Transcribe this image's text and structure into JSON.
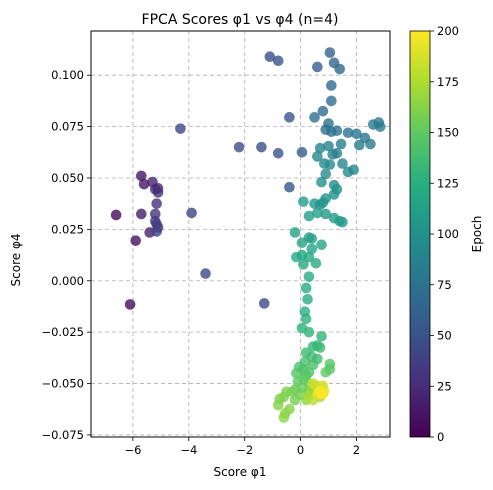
{
  "chart_data": {
    "type": "scatter",
    "title": "FPCA Scores φ1 vs φ4 (n=4)",
    "xlabel": "Score φ1",
    "ylabel": "Score φ4",
    "xlim": [
      -7.5,
      3.2
    ],
    "ylim": [
      -0.076,
      0.1215
    ],
    "xticks": [
      -6,
      -4,
      -2,
      0,
      2
    ],
    "xtick_labels": [
      "−6",
      "−4",
      "−2",
      "0",
      "2"
    ],
    "yticks": [
      -0.075,
      -0.05,
      -0.025,
      0.0,
      0.025,
      0.05,
      0.075,
      0.1
    ],
    "ytick_labels": [
      "−0.075",
      "−0.050",
      "−0.025",
      "0.000",
      "0.025",
      "0.050",
      "0.075",
      "0.100"
    ],
    "grid": true,
    "colormap": "viridis",
    "marker_alpha": 0.8,
    "colorbar": {
      "label": "Epoch",
      "range": [
        0,
        200
      ],
      "ticks": [
        0,
        25,
        50,
        75,
        100,
        125,
        150,
        175,
        200
      ],
      "tick_labels": [
        "0",
        "25",
        "50",
        "75",
        "100",
        "125",
        "150",
        "175",
        "200"
      ]
    },
    "points": [
      [
        -6.6,
        0.032,
        5
      ],
      [
        -6.1,
        -0.0115,
        8
      ],
      [
        -5.9,
        0.0195,
        10
      ],
      [
        -5.7,
        0.051,
        12
      ],
      [
        -5.6,
        0.047,
        14
      ],
      [
        -5.7,
        0.0325,
        16
      ],
      [
        -5.4,
        0.0235,
        18
      ],
      [
        -5.3,
        0.048,
        20
      ],
      [
        -5.2,
        0.0445,
        22
      ],
      [
        -5.1,
        0.045,
        24
      ],
      [
        -5.1,
        0.043,
        26
      ],
      [
        -5.15,
        0.0375,
        28
      ],
      [
        -5.2,
        0.0325,
        30
      ],
      [
        -5.2,
        0.029,
        32
      ],
      [
        -5.15,
        0.0275,
        34
      ],
      [
        -5.1,
        0.026,
        36
      ],
      [
        -5.15,
        0.024,
        38
      ],
      [
        -3.9,
        0.033,
        40
      ],
      [
        -4.3,
        0.074,
        42
      ],
      [
        -3.4,
        0.0035,
        44
      ],
      [
        -1.3,
        -0.011,
        45
      ],
      [
        -2.2,
        0.065,
        46
      ],
      [
        -1.4,
        0.065,
        48
      ],
      [
        -1.1,
        0.109,
        49
      ],
      [
        -0.8,
        0.107,
        50
      ],
      [
        -0.8,
        0.062,
        52
      ],
      [
        -0.4,
        0.0795,
        54
      ],
      [
        -0.4,
        0.0455,
        56
      ],
      [
        0.05,
        0.0625,
        58
      ],
      [
        0.6,
        0.104,
        60
      ],
      [
        1.05,
        0.111,
        62
      ],
      [
        1.2,
        0.106,
        64
      ],
      [
        1.4,
        0.103,
        66
      ],
      [
        1.1,
        0.095,
        68
      ],
      [
        1.1,
        0.0875,
        70
      ],
      [
        0.8,
        0.0825,
        71
      ],
      [
        0.5,
        0.0795,
        72
      ],
      [
        1.0,
        0.0765,
        73
      ],
      [
        0.9,
        0.0735,
        74
      ],
      [
        1.1,
        0.0725,
        75
      ],
      [
        1.3,
        0.073,
        76
      ],
      [
        1.7,
        0.072,
        77
      ],
      [
        2.0,
        0.0715,
        78
      ],
      [
        2.3,
        0.0695,
        79
      ],
      [
        2.6,
        0.076,
        80
      ],
      [
        2.8,
        0.077,
        81
      ],
      [
        2.85,
        0.075,
        82
      ],
      [
        2.5,
        0.0665,
        83
      ],
      [
        2.1,
        0.066,
        84
      ],
      [
        1.45,
        0.0665,
        85
      ],
      [
        1.3,
        0.062,
        86
      ],
      [
        1.15,
        0.0615,
        87
      ],
      [
        1.0,
        0.0655,
        88
      ],
      [
        0.7,
        0.0645,
        89
      ],
      [
        0.6,
        0.0605,
        90
      ],
      [
        1.5,
        0.057,
        91
      ],
      [
        1.7,
        0.053,
        92
      ],
      [
        1.9,
        0.054,
        93
      ],
      [
        1.05,
        0.0565,
        94
      ],
      [
        0.85,
        0.057,
        95
      ],
      [
        0.9,
        0.052,
        96
      ],
      [
        0.75,
        0.048,
        97
      ],
      [
        1.2,
        0.0465,
        98
      ],
      [
        1.3,
        0.0445,
        99
      ],
      [
        1.2,
        0.042,
        100
      ],
      [
        0.9,
        0.04,
        101
      ],
      [
        0.8,
        0.038,
        102
      ],
      [
        0.7,
        0.037,
        103
      ],
      [
        0.5,
        0.0375,
        104
      ],
      [
        0.9,
        0.0325,
        105
      ],
      [
        1.4,
        0.029,
        106
      ],
      [
        1.5,
        0.0285,
        107
      ],
      [
        1.2,
        0.0305,
        108
      ],
      [
        0.1,
        0.0385,
        109
      ],
      [
        0.6,
        0.033,
        110
      ],
      [
        0.3,
        0.0315,
        111
      ],
      [
        0.3,
        0.021,
        112
      ],
      [
        0.4,
        0.0205,
        113
      ],
      [
        -0.2,
        0.0235,
        114
      ],
      [
        0.05,
        0.0185,
        115
      ],
      [
        0.4,
        0.0155,
        116
      ],
      [
        0.75,
        0.0175,
        117
      ],
      [
        0.05,
        0.0125,
        118
      ],
      [
        -0.15,
        0.0115,
        119
      ],
      [
        0.3,
        0.0115,
        120
      ],
      [
        0.1,
        0.008,
        121
      ],
      [
        0.55,
        0.0085,
        122
      ],
      [
        0.3,
        0.002,
        123
      ],
      [
        0.2,
        -0.0035,
        124
      ],
      [
        0.25,
        -0.009,
        125
      ],
      [
        0.15,
        -0.015,
        126
      ],
      [
        0.2,
        -0.0185,
        127
      ],
      [
        0.05,
        -0.023,
        128
      ],
      [
        0.3,
        -0.025,
        129
      ],
      [
        0.75,
        -0.027,
        130
      ],
      [
        0.45,
        -0.032,
        131
      ],
      [
        0.6,
        -0.0315,
        132
      ],
      [
        0.7,
        -0.0325,
        134
      ],
      [
        0.2,
        -0.035,
        135
      ],
      [
        0.4,
        -0.037,
        136
      ],
      [
        0.6,
        -0.038,
        138
      ],
      [
        0.15,
        -0.0395,
        140
      ],
      [
        0.45,
        -0.041,
        141
      ],
      [
        -0.05,
        -0.042,
        142
      ],
      [
        0.1,
        -0.043,
        143
      ],
      [
        0.3,
        -0.0445,
        144
      ],
      [
        -0.15,
        -0.045,
        145
      ],
      [
        0.2,
        -0.046,
        146
      ],
      [
        1.05,
        -0.0405,
        147
      ],
      [
        1.05,
        -0.043,
        148
      ],
      [
        0.9,
        -0.0445,
        149
      ],
      [
        0.1,
        -0.048,
        150
      ],
      [
        -0.1,
        -0.049,
        151
      ],
      [
        0.3,
        -0.05,
        152
      ],
      [
        0.05,
        -0.052,
        153
      ],
      [
        -0.2,
        -0.053,
        154
      ],
      [
        0.3,
        -0.054,
        155
      ],
      [
        0.0,
        -0.0555,
        156
      ],
      [
        -0.2,
        -0.058,
        157
      ],
      [
        -0.3,
        -0.054,
        158
      ],
      [
        -0.5,
        -0.054,
        159
      ],
      [
        -0.6,
        -0.0565,
        160
      ],
      [
        -0.75,
        -0.0575,
        161
      ],
      [
        -0.8,
        -0.0605,
        162
      ],
      [
        -0.4,
        -0.0625,
        163
      ],
      [
        -0.55,
        -0.0645,
        164
      ],
      [
        -0.6,
        -0.0665,
        165
      ],
      [
        0.2,
        -0.058,
        166
      ],
      [
        0.4,
        -0.0525,
        168
      ],
      [
        0.55,
        -0.0535,
        170
      ],
      [
        0.7,
        -0.0565,
        172
      ],
      [
        0.3,
        -0.056,
        174
      ],
      [
        0.6,
        -0.0545,
        176
      ],
      [
        0.45,
        -0.058,
        178
      ],
      [
        0.75,
        -0.0525,
        180
      ],
      [
        0.55,
        -0.051,
        182
      ],
      [
        0.45,
        -0.05,
        184
      ],
      [
        0.8,
        -0.051,
        186
      ],
      [
        0.6,
        -0.0555,
        188
      ],
      [
        0.75,
        -0.054,
        190
      ],
      [
        0.85,
        -0.0535,
        192
      ],
      [
        0.65,
        -0.0545,
        194
      ],
      [
        0.8,
        -0.055,
        196
      ],
      [
        0.7,
        -0.0535,
        198
      ],
      [
        0.75,
        -0.055,
        200
      ]
    ]
  }
}
